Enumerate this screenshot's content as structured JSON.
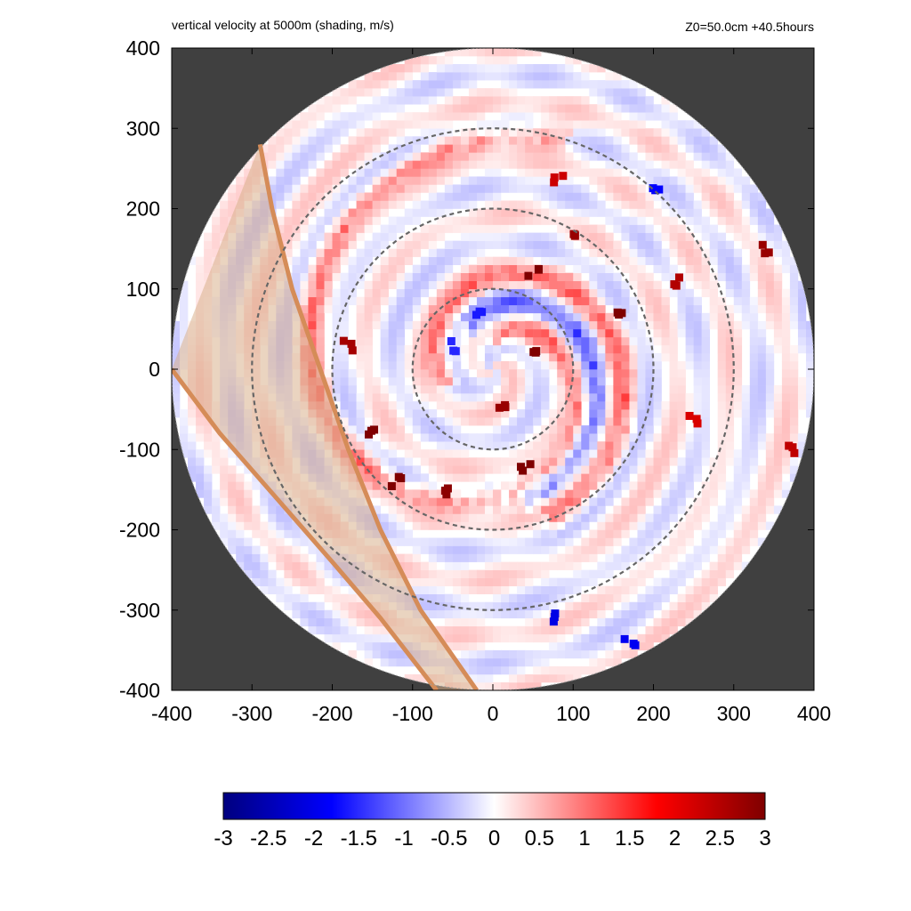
{
  "chart_data": {
    "type": "heatmap",
    "title": "vertical velocity at 5000m (shading, m/s)",
    "subtitle": "Z0=50.0cm  +40.5hours",
    "xlabel": "",
    "ylabel": "",
    "xlim": [
      -400,
      400
    ],
    "ylim": [
      -400,
      400
    ],
    "x_ticks": [
      -400,
      -300,
      -200,
      -100,
      0,
      100,
      200,
      300,
      400
    ],
    "y_ticks": [
      -400,
      -300,
      -200,
      -100,
      0,
      100,
      200,
      300,
      400
    ],
    "x_tick_labels": [
      "-400",
      "-300",
      "-200",
      "-100",
      "0",
      "100",
      "200",
      "300",
      "400"
    ],
    "y_tick_labels": [
      "400",
      "300",
      "200",
      "100",
      "0",
      "-100",
      "-200",
      "-300",
      "-400"
    ],
    "domain_radius": 400,
    "grid": false,
    "range_rings": [
      100,
      200,
      300
    ],
    "colorbar": {
      "min": -3,
      "max": 3,
      "ticks": [
        -3,
        -2.5,
        -2,
        -1.5,
        -1,
        -0.5,
        0,
        0.5,
        1,
        1.5,
        2,
        2.5,
        3
      ],
      "tick_labels": [
        "-3",
        "-2.5",
        "-2",
        "-1.5",
        "-1",
        "-0.5",
        "0",
        "0.5",
        "1",
        "1.5",
        "2",
        "2.5",
        "3"
      ],
      "colors": [
        "#00007f",
        "#0000ff",
        "#ffffff",
        "#ff0000",
        "#7f0000"
      ]
    },
    "land_region": {
      "outer_edge": [
        [
          -290,
          280
        ],
        [
          -275,
          200
        ],
        [
          -250,
          100
        ],
        [
          -215,
          0
        ],
        [
          -180,
          -100
        ],
        [
          -140,
          -200
        ],
        [
          -90,
          -300
        ],
        [
          -20,
          -400
        ]
      ],
      "inner_edge": [
        [
          -400,
          0
        ],
        [
          -340,
          -80
        ],
        [
          -270,
          -160
        ],
        [
          -200,
          -240
        ],
        [
          -140,
          -310
        ],
        [
          -70,
          -400
        ]
      ],
      "fill_color": "#d9b08c",
      "edge_color": "#d58c58"
    },
    "spiral_bands": [
      {
        "sign": "positive",
        "radius_start": 35,
        "radius_end": 300,
        "angle_start_deg": 90,
        "turns": 1.05,
        "peak": 3
      },
      {
        "sign": "positive",
        "radius_start": 55,
        "radius_end": 200,
        "angle_start_deg": 200,
        "turns": 0.75,
        "peak": 3
      },
      {
        "sign": "negative",
        "radius_start": 60,
        "radius_end": 170,
        "angle_start_deg": 120,
        "turns": 0.55,
        "peak": -1.5
      }
    ],
    "peak_cells": [
      {
        "x": 100,
        "y": 170,
        "value": 2.8
      },
      {
        "x": 50,
        "y": 120,
        "value": 3
      },
      {
        "x": 160,
        "y": 70,
        "value": 3
      },
      {
        "x": 230,
        "y": 110,
        "value": 2.6
      },
      {
        "x": -180,
        "y": 30,
        "value": 2.7
      },
      {
        "x": -150,
        "y": -80,
        "value": 3
      },
      {
        "x": -120,
        "y": -140,
        "value": 3
      },
      {
        "x": -60,
        "y": -150,
        "value": 2.9
      },
      {
        "x": 40,
        "y": -120,
        "value": 3
      },
      {
        "x": 10,
        "y": -50,
        "value": 2.8
      },
      {
        "x": 50,
        "y": 20,
        "value": 3
      },
      {
        "x": 340,
        "y": 150,
        "value": 2.8
      },
      {
        "x": 370,
        "y": -100,
        "value": 2.5
      },
      {
        "x": 250,
        "y": -60,
        "value": 2.3
      },
      {
        "x": 80,
        "y": 240,
        "value": 2.4
      },
      {
        "x": 200,
        "y": 230,
        "value": -2
      },
      {
        "x": 80,
        "y": -310,
        "value": -2.2
      },
      {
        "x": 170,
        "y": -340,
        "value": -2.1
      },
      {
        "x": -20,
        "y": 70,
        "value": -1.8
      },
      {
        "x": -50,
        "y": 30,
        "value": -1.7
      }
    ]
  }
}
